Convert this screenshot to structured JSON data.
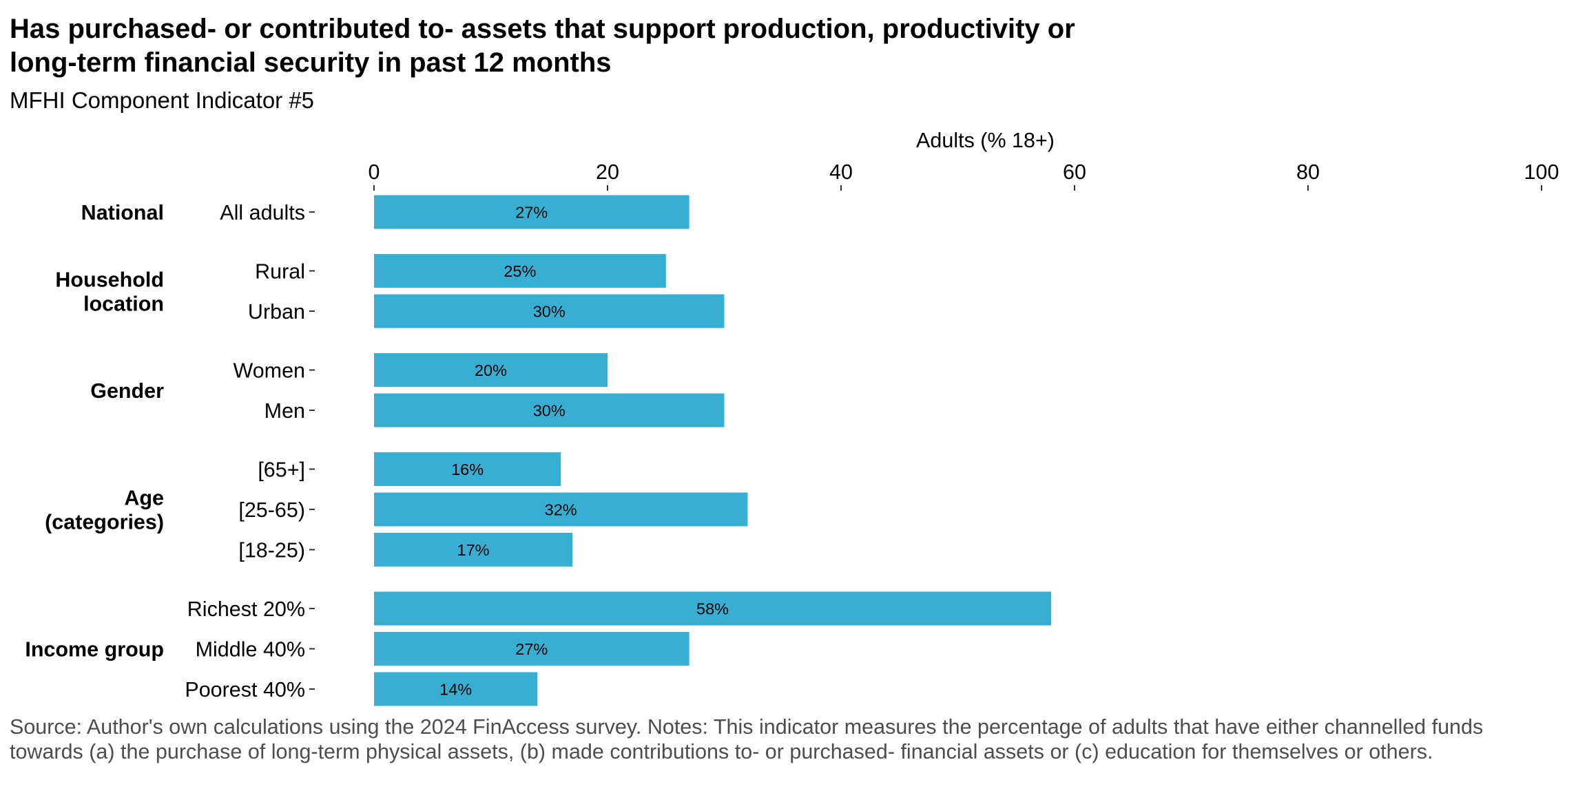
{
  "title": "Has purchased- or contributed to- assets that support production, productivity or long-term financial security in past 12 months",
  "subtitle": "MFHI Component Indicator #5",
  "caption": "Source: Author's own calculations using the 2024 FinAccess survey. Notes: This indicator measures the percentage of adults that have either channelled funds towards (a) the purchase of long-term physical assets, (b) made contributions to- or purchased- financial assets or (c) education for themselves or others.",
  "colors": {
    "bar": "#38afd2",
    "text": "#000000",
    "caption": "#4d4d4d"
  },
  "chart_data": {
    "type": "bar",
    "orientation": "horizontal",
    "xlabel": "Adults (% 18+)",
    "xlim": [
      0,
      100
    ],
    "x_ticks": [
      0,
      20,
      40,
      60,
      80,
      100
    ],
    "x_axis_position": "top",
    "grid": false,
    "legend": "none",
    "groups": [
      {
        "label": "National",
        "categories": [
          "All adults"
        ],
        "values": [
          27
        ],
        "value_labels": [
          "27%"
        ]
      },
      {
        "label": "Household location",
        "label_lines": [
          "Household",
          "location"
        ],
        "categories": [
          "Rural",
          "Urban"
        ],
        "values": [
          25,
          30
        ],
        "value_labels": [
          "25%",
          "30%"
        ]
      },
      {
        "label": "Gender",
        "categories": [
          "Women",
          "Men"
        ],
        "values": [
          20,
          30
        ],
        "value_labels": [
          "20%",
          "30%"
        ]
      },
      {
        "label": "Age (categories)",
        "label_lines": [
          "Age",
          "(categories)"
        ],
        "categories": [
          "[65+]",
          "[25-65)",
          "[18-25)"
        ],
        "values": [
          16,
          32,
          17
        ],
        "value_labels": [
          "16%",
          "32%",
          "17%"
        ]
      },
      {
        "label": "Income group",
        "categories": [
          "Richest 20%",
          "Middle 40%",
          "Poorest 40%"
        ],
        "values": [
          58,
          27,
          14
        ],
        "value_labels": [
          "58%",
          "27%",
          "14%"
        ]
      }
    ]
  }
}
